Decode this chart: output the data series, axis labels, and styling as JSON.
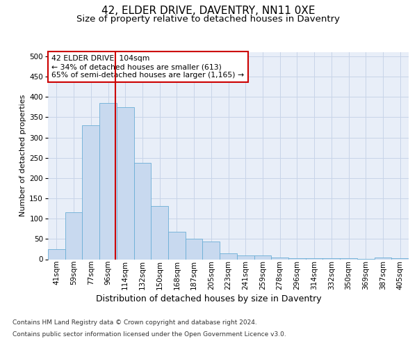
{
  "title1": "42, ELDER DRIVE, DAVENTRY, NN11 0XE",
  "title2": "Size of property relative to detached houses in Daventry",
  "xlabel": "Distribution of detached houses by size in Daventry",
  "ylabel": "Number of detached properties",
  "bar_labels": [
    "41sqm",
    "59sqm",
    "77sqm",
    "96sqm",
    "114sqm",
    "132sqm",
    "150sqm",
    "168sqm",
    "187sqm",
    "205sqm",
    "223sqm",
    "241sqm",
    "259sqm",
    "278sqm",
    "296sqm",
    "314sqm",
    "332sqm",
    "350sqm",
    "369sqm",
    "387sqm",
    "405sqm"
  ],
  "bar_values": [
    25,
    115,
    330,
    385,
    375,
    237,
    132,
    68,
    50,
    44,
    15,
    10,
    10,
    5,
    2,
    2,
    2,
    2,
    1,
    5,
    2
  ],
  "bar_color": "#c8d9ef",
  "bar_edge_color": "#6baed6",
  "grid_color": "#c8d4e8",
  "background_color": "#e8eef8",
  "red_line_x": 3.44,
  "red_line_color": "#cc0000",
  "annotation_text": "42 ELDER DRIVE: 104sqm\n← 34% of detached houses are smaller (613)\n65% of semi-detached houses are larger (1,165) →",
  "annotation_box_color": "#ffffff",
  "annotation_box_edge": "#cc0000",
  "ylim": [
    0,
    510
  ],
  "yticks": [
    0,
    50,
    100,
    150,
    200,
    250,
    300,
    350,
    400,
    450,
    500
  ],
  "footnote1": "Contains HM Land Registry data © Crown copyright and database right 2024.",
  "footnote2": "Contains public sector information licensed under the Open Government Licence v3.0.",
  "title1_fontsize": 11,
  "title2_fontsize": 9.5,
  "xlabel_fontsize": 9,
  "ylabel_fontsize": 8,
  "tick_fontsize": 7.5,
  "annotation_fontsize": 7.8,
  "footnote_fontsize": 6.5
}
